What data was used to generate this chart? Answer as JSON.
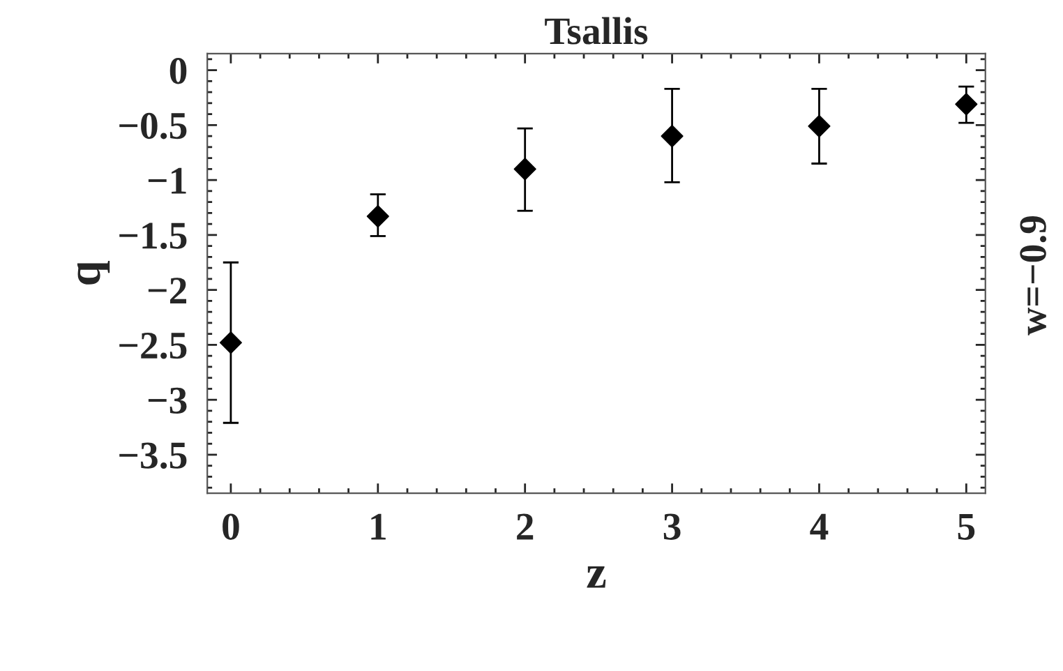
{
  "chart_data": {
    "type": "scatter",
    "title": "Tsallis",
    "xlabel": "z",
    "ylabel": "q",
    "annotations": [
      "w=−0.9"
    ],
    "x": [
      0,
      1,
      2,
      3,
      4,
      5
    ],
    "series": [
      {
        "color": "#000000",
        "values": [
          -2.48,
          -1.33,
          -0.9,
          -0.6,
          -0.51,
          -0.31
        ],
        "errors": [
          [
            -3.21,
            -1.75
          ],
          [
            -1.51,
            -1.13
          ],
          [
            -1.28,
            -0.53
          ],
          [
            -1.02,
            -0.17
          ],
          [
            -0.85,
            -0.17
          ],
          [
            -0.48,
            -0.15
          ]
        ]
      }
    ],
    "marker": "diamond",
    "xlim": [
      -0.16,
      5.13
    ],
    "ylim": [
      -3.85,
      0.15
    ],
    "xticks": [
      0,
      1,
      2,
      3,
      4,
      5
    ],
    "yticks": [
      0,
      {
        "value": -0.5,
        "label": "−0.5"
      },
      {
        "value": -1,
        "label": "−1"
      },
      {
        "value": -1.5,
        "label": "−1.5"
      },
      {
        "value": -2,
        "label": "−2"
      },
      {
        "value": -2.5,
        "label": "−2.5"
      },
      {
        "value": -3,
        "label": "−3"
      },
      {
        "value": -3.5,
        "label": "−3.5"
      }
    ],
    "grid": false,
    "legend": false
  }
}
